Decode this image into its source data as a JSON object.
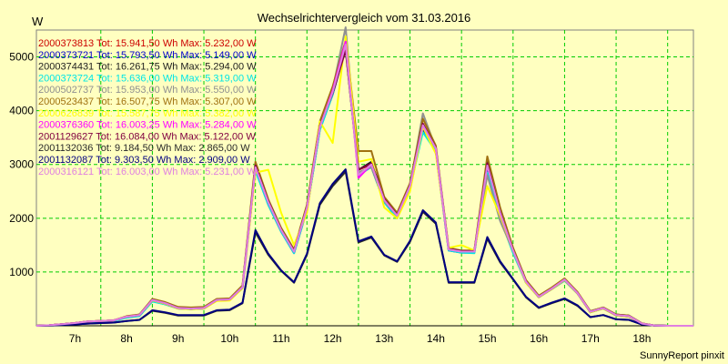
{
  "chart_data": {
    "type": "line",
    "title": "Wechselrichtervergleich vom 31.03.2016",
    "ylabel": "W",
    "footer": "SunnyReport pinxit",
    "ylim": [
      0,
      5500
    ],
    "y_ticks": [
      1000,
      2000,
      3000,
      4000,
      5000
    ],
    "x_ticks": [
      "7h",
      "8h",
      "9h",
      "10h",
      "11h",
      "12h",
      "13h",
      "14h",
      "15h",
      "16h",
      "17h",
      "18h"
    ],
    "x_tick_hours": [
      7,
      8,
      9,
      10,
      11,
      12,
      13,
      14,
      15,
      16,
      17,
      18
    ],
    "xlim": [
      6.25,
      19.0
    ],
    "grid": true,
    "legend_position": "top-left",
    "x": [
      6.25,
      6.5,
      6.75,
      7.0,
      7.25,
      7.5,
      7.75,
      8.0,
      8.25,
      8.5,
      8.75,
      9.0,
      9.25,
      9.5,
      9.75,
      10.0,
      10.25,
      10.5,
      10.75,
      11.0,
      11.25,
      11.5,
      11.75,
      12.0,
      12.25,
      12.5,
      12.75,
      13.0,
      13.25,
      13.5,
      13.75,
      14.0,
      14.25,
      14.5,
      14.75,
      15.0,
      15.25,
      15.5,
      15.75,
      16.0,
      16.25,
      16.5,
      16.75,
      17.0,
      17.25,
      17.5,
      17.75,
      18.0,
      18.25,
      18.5,
      18.75,
      19.0
    ],
    "series": [
      {
        "name": "2000373813 Tot: 15.941,50 Wh Max: 5.232,00 W",
        "color": "#cc0000",
        "values": [
          0,
          10,
          30,
          50,
          80,
          90,
          100,
          170,
          200,
          480,
          420,
          330,
          320,
          330,
          480,
          490,
          720,
          2950,
          2300,
          1780,
          1380,
          2200,
          3700,
          4350,
          5232,
          2900,
          3000,
          2350,
          2050,
          2600,
          3700,
          3300,
          1420,
          1380,
          1380,
          3000,
          2100,
          1400,
          820,
          540,
          690,
          860,
          610,
          260,
          330,
          200,
          180,
          40,
          5,
          0,
          0,
          0
        ]
      },
      {
        "name": "2000373721 Tot: 15.793,50 Wh Max: 5.149,00 W",
        "color": "#0000cc",
        "values": [
          0,
          10,
          30,
          40,
          70,
          80,
          90,
          160,
          190,
          460,
          400,
          320,
          310,
          320,
          470,
          480,
          700,
          2900,
          2250,
          1750,
          1350,
          2150,
          3650,
          4300,
          5149,
          2850,
          2950,
          2300,
          2000,
          2550,
          3650,
          3250,
          1400,
          1360,
          1360,
          2900,
          2050,
          1380,
          800,
          530,
          680,
          840,
          600,
          250,
          320,
          190,
          170,
          40,
          5,
          0,
          0,
          0
        ]
      },
      {
        "name": "2000374431 Tot: 16.261,75 Wh Max: 5.294,00 W",
        "color": "#1e1e1e",
        "values": [
          0,
          10,
          30,
          50,
          80,
          90,
          100,
          170,
          210,
          490,
          430,
          340,
          330,
          340,
          490,
          500,
          730,
          3000,
          2330,
          1800,
          1400,
          2230,
          3750,
          4400,
          5294,
          2900,
          3050,
          2380,
          2080,
          2620,
          3720,
          3320,
          1430,
          1390,
          1390,
          3050,
          2150,
          1420,
          830,
          550,
          700,
          870,
          620,
          270,
          340,
          210,
          190,
          45,
          5,
          0,
          0,
          0
        ]
      },
      {
        "name": "2000373724 Tot: 15.636,00 Wh Max: 5.319,00 W",
        "color": "#00e5e5",
        "values": [
          0,
          10,
          25,
          40,
          70,
          80,
          90,
          150,
          180,
          450,
          400,
          320,
          310,
          320,
          470,
          480,
          700,
          2880,
          2250,
          1750,
          1350,
          2150,
          3640,
          4300,
          5319,
          2800,
          2950,
          2300,
          2000,
          2550,
          3600,
          3250,
          1400,
          1360,
          1350,
          2850,
          2000,
          1350,
          800,
          530,
          680,
          840,
          600,
          250,
          320,
          190,
          170,
          40,
          5,
          0,
          0,
          0
        ]
      },
      {
        "name": "2000502737 Tot: 15.953,00 Wh Max: 5.550,00 W",
        "color": "#909090",
        "values": [
          0,
          10,
          30,
          50,
          80,
          90,
          100,
          170,
          200,
          480,
          420,
          330,
          320,
          330,
          480,
          490,
          720,
          2950,
          2300,
          1780,
          1380,
          2200,
          3700,
          4400,
          5550,
          2850,
          2950,
          2320,
          2050,
          2600,
          3950,
          3300,
          1420,
          1380,
          1380,
          2800,
          1950,
          1400,
          820,
          540,
          690,
          860,
          610,
          260,
          330,
          200,
          180,
          40,
          5,
          0,
          0,
          0
        ]
      },
      {
        "name": "2000523437 Tot: 16.507,75 Wh Max: 5.307,00 W",
        "color": "#a07010",
        "values": [
          0,
          10,
          30,
          50,
          80,
          90,
          100,
          180,
          210,
          500,
          440,
          350,
          340,
          350,
          500,
          510,
          750,
          3050,
          2350,
          1820,
          1420,
          2250,
          3800,
          4450,
          5307,
          3250,
          3250,
          2400,
          2100,
          2650,
          3850,
          3350,
          1450,
          1400,
          1400,
          3150,
          2200,
          1450,
          850,
          560,
          710,
          880,
          630,
          270,
          340,
          210,
          190,
          45,
          5,
          0,
          0,
          0
        ]
      },
      {
        "name": "2000626839 Tot: 15.587,75 Wh Max: 5.382,00 W",
        "color": "#ffff00",
        "values": [
          0,
          10,
          30,
          50,
          80,
          90,
          100,
          170,
          200,
          470,
          410,
          320,
          310,
          320,
          460,
          470,
          700,
          2850,
          2900,
          2100,
          1500,
          2100,
          3800,
          3400,
          5382,
          3050,
          3100,
          2200,
          2000,
          2500,
          3700,
          3200,
          1450,
          1500,
          1400,
          2600,
          2050,
          1400,
          800,
          530,
          680,
          850,
          600,
          250,
          320,
          190,
          170,
          40,
          5,
          0,
          0,
          0
        ]
      },
      {
        "name": "2000376360 Tot: 16.003,25 Wh Max: 5.284,00 W",
        "color": "#ff00ff",
        "values": [
          0,
          10,
          30,
          50,
          80,
          90,
          100,
          170,
          200,
          480,
          420,
          330,
          320,
          330,
          480,
          490,
          720,
          2950,
          2300,
          1780,
          1380,
          2200,
          3700,
          4380,
          5284,
          2750,
          3000,
          2350,
          2050,
          2600,
          3750,
          3300,
          1420,
          1380,
          1380,
          3000,
          2100,
          1400,
          820,
          540,
          690,
          860,
          610,
          260,
          330,
          200,
          180,
          40,
          5,
          0,
          0,
          0
        ]
      },
      {
        "name": "2001129627 Tot: 16.084,00 Wh Max: 5.122,00 W",
        "color": "#800040",
        "values": [
          0,
          10,
          30,
          50,
          80,
          90,
          100,
          170,
          200,
          480,
          420,
          330,
          320,
          330,
          480,
          490,
          720,
          2980,
          2320,
          1790,
          1390,
          2210,
          3720,
          4330,
          5122,
          2900,
          3020,
          2360,
          2060,
          2610,
          3760,
          3310,
          1430,
          1390,
          1390,
          3020,
          2120,
          1410,
          830,
          540,
          690,
          860,
          610,
          260,
          330,
          200,
          180,
          40,
          5,
          0,
          0,
          0
        ]
      },
      {
        "name": "2001132036 Tot: 9.184,50 Wh Max: 2.865,00 W",
        "color": "#2a2a2a",
        "values": [
          0,
          5,
          15,
          25,
          40,
          50,
          60,
          90,
          110,
          280,
          240,
          190,
          190,
          190,
          280,
          290,
          420,
          1740,
          1320,
          1020,
          800,
          1320,
          2250,
          2600,
          2865,
          1550,
          1640,
          1310,
          1190,
          1560,
          2120,
          1900,
          800,
          800,
          800,
          1620,
          1180,
          860,
          530,
          330,
          420,
          500,
          370,
          160,
          200,
          120,
          110,
          25,
          5,
          0,
          0,
          0
        ]
      },
      {
        "name": "2001132087 Tot: 9.303,50 Wh Max: 2.909,00 W",
        "color": "#000080",
        "values": [
          0,
          5,
          15,
          25,
          40,
          50,
          60,
          90,
          110,
          290,
          250,
          200,
          200,
          200,
          290,
          300,
          430,
          1780,
          1340,
          1030,
          810,
          1340,
          2280,
          2640,
          2909,
          1570,
          1660,
          1320,
          1200,
          1580,
          2150,
          1920,
          810,
          810,
          810,
          1650,
          1200,
          870,
          540,
          340,
          430,
          510,
          380,
          160,
          200,
          120,
          110,
          25,
          5,
          0,
          0,
          0
        ]
      },
      {
        "name": "2000316121 Tot: 16.003,00 Wh Max: 5.231,00 W",
        "color": "#e080e0",
        "values": [
          0,
          10,
          30,
          50,
          80,
          90,
          100,
          170,
          200,
          480,
          420,
          330,
          320,
          330,
          480,
          490,
          720,
          2950,
          2300,
          1780,
          1380,
          2200,
          3700,
          4350,
          5231,
          2800,
          3000,
          2340,
          2050,
          2600,
          3730,
          3300,
          1420,
          1380,
          1380,
          2980,
          2100,
          1400,
          820,
          540,
          690,
          860,
          610,
          260,
          330,
          200,
          180,
          40,
          5,
          0,
          0,
          0
        ]
      }
    ]
  }
}
